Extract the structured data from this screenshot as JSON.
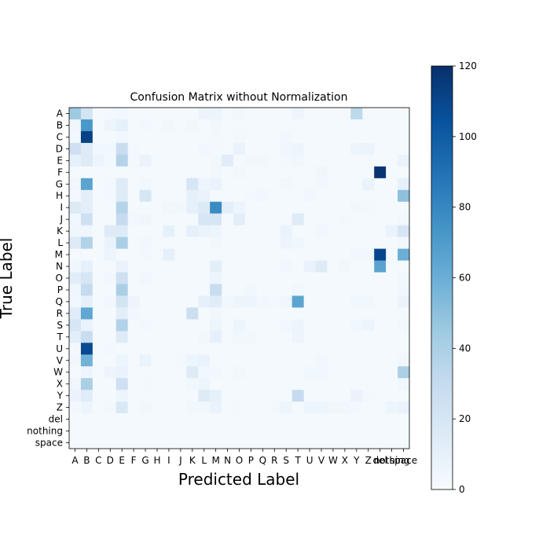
{
  "chart_data": {
    "type": "heatmap",
    "title": "Confusion Matrix without Normalization",
    "xlabel": "Predicted Label",
    "ylabel": "True Label",
    "x_tick_labels": [
      "A",
      "B",
      "C",
      "D",
      "E",
      "F",
      "G",
      "H",
      "I",
      "J",
      "K",
      "L",
      "M",
      "N",
      "O",
      "P",
      "Q",
      "R",
      "S",
      "T",
      "U",
      "V",
      "W",
      "X",
      "Y",
      "Z",
      "del",
      "nothing",
      "space"
    ],
    "y_tick_labels": [
      "A",
      "B",
      "C",
      "D",
      "E",
      "F",
      "G",
      "H",
      "I",
      "J",
      "K",
      "L",
      "M",
      "N",
      "O",
      "P",
      "Q",
      "R",
      "S",
      "T",
      "U",
      "V",
      "W",
      "X",
      "Y",
      "Z",
      "del",
      "nothing",
      "space"
    ],
    "colorbar": {
      "range": [
        0,
        120
      ],
      "ticks": [
        "0",
        "20",
        "40",
        "60",
        "80",
        "100",
        "120"
      ],
      "colormap": "Blues"
    },
    "color_stops": [
      "#f7fbff",
      "#deebf7",
      "#c6dbef",
      "#9ecae1",
      "#6baed6",
      "#4292c6",
      "#2171b5",
      "#08519c",
      "#08306b"
    ],
    "matrix": [
      [
        45,
        22,
        2,
        3,
        4,
        2,
        2,
        2,
        2,
        2,
        2,
        6,
        6,
        2,
        4,
        2,
        2,
        2,
        2,
        6,
        2,
        2,
        2,
        2,
        33,
        2,
        2,
        2,
        2
      ],
      [
        5,
        72,
        2,
        6,
        10,
        2,
        3,
        2,
        4,
        2,
        4,
        2,
        4,
        2,
        2,
        2,
        2,
        2,
        2,
        2,
        2,
        2,
        2,
        2,
        2,
        2,
        2,
        2,
        2
      ],
      [
        4,
        112,
        2,
        2,
        4,
        2,
        2,
        2,
        2,
        2,
        2,
        2,
        3,
        2,
        3,
        2,
        2,
        2,
        4,
        2,
        2,
        2,
        2,
        2,
        2,
        2,
        2,
        2,
        2
      ],
      [
        25,
        15,
        4,
        4,
        28,
        3,
        2,
        2,
        2,
        2,
        2,
        4,
        3,
        2,
        8,
        2,
        2,
        2,
        5,
        6,
        2,
        2,
        2,
        2,
        6,
        7,
        2,
        2,
        2
      ],
      [
        10,
        15,
        6,
        3,
        37,
        3,
        8,
        2,
        2,
        2,
        2,
        2,
        4,
        14,
        2,
        4,
        4,
        2,
        3,
        5,
        2,
        2,
        2,
        2,
        2,
        2,
        2,
        2,
        8
      ],
      [
        2,
        2,
        2,
        2,
        2,
        2,
        2,
        2,
        2,
        2,
        2,
        2,
        4,
        2,
        4,
        2,
        2,
        2,
        2,
        2,
        2,
        5,
        2,
        2,
        2,
        2,
        118,
        2,
        2
      ],
      [
        5,
        66,
        2,
        3,
        15,
        2,
        4,
        2,
        2,
        2,
        20,
        6,
        8,
        2,
        2,
        2,
        2,
        2,
        4,
        2,
        2,
        4,
        2,
        2,
        2,
        8,
        2,
        2,
        10
      ],
      [
        3,
        12,
        2,
        3,
        15,
        2,
        20,
        2,
        2,
        2,
        10,
        8,
        2,
        2,
        2,
        3,
        4,
        2,
        2,
        2,
        4,
        2,
        2,
        2,
        2,
        2,
        2,
        2,
        50
      ],
      [
        16,
        12,
        2,
        2,
        36,
        2,
        2,
        2,
        5,
        4,
        10,
        16,
        78,
        12,
        6,
        2,
        2,
        2,
        2,
        2,
        2,
        2,
        2,
        2,
        4,
        3,
        2,
        2,
        2
      ],
      [
        4,
        25,
        2,
        2,
        30,
        4,
        5,
        2,
        2,
        2,
        2,
        20,
        20,
        2,
        12,
        2,
        2,
        2,
        2,
        15,
        2,
        2,
        2,
        3,
        2,
        2,
        2,
        2,
        4
      ],
      [
        5,
        5,
        2,
        15,
        15,
        2,
        2,
        2,
        10,
        2,
        10,
        8,
        6,
        2,
        2,
        2,
        2,
        2,
        8,
        2,
        2,
        4,
        2,
        2,
        2,
        2,
        2,
        8,
        20
      ],
      [
        15,
        38,
        2,
        8,
        40,
        2,
        4,
        2,
        2,
        2,
        2,
        2,
        4,
        2,
        2,
        2,
        2,
        2,
        6,
        5,
        2,
        2,
        2,
        2,
        2,
        2,
        2,
        2,
        4
      ],
      [
        2,
        2,
        2,
        6,
        2,
        2,
        3,
        2,
        10,
        2,
        2,
        2,
        2,
        2,
        2,
        2,
        2,
        2,
        2,
        2,
        2,
        2,
        2,
        2,
        4,
        4,
        110,
        2,
        60
      ],
      [
        5,
        10,
        2,
        2,
        8,
        2,
        2,
        2,
        2,
        2,
        2,
        2,
        12,
        2,
        2,
        2,
        2,
        2,
        4,
        2,
        8,
        15,
        2,
        4,
        2,
        2,
        66,
        2,
        2
      ],
      [
        13,
        20,
        2,
        4,
        25,
        2,
        4,
        2,
        2,
        2,
        2,
        2,
        6,
        2,
        2,
        2,
        2,
        2,
        2,
        2,
        2,
        2,
        2,
        2,
        2,
        2,
        2,
        2,
        4
      ],
      [
        5,
        30,
        2,
        2,
        40,
        2,
        2,
        2,
        2,
        2,
        2,
        2,
        28,
        2,
        2,
        4,
        2,
        2,
        2,
        4,
        2,
        2,
        2,
        2,
        2,
        2,
        2,
        2,
        4
      ],
      [
        4,
        10,
        2,
        4,
        22,
        6,
        2,
        2,
        2,
        2,
        2,
        10,
        14,
        4,
        6,
        6,
        4,
        3,
        5,
        65,
        2,
        2,
        2,
        2,
        4,
        4,
        2,
        2,
        8
      ],
      [
        14,
        64,
        2,
        2,
        12,
        4,
        2,
        2,
        2,
        2,
        26,
        2,
        4,
        2,
        2,
        2,
        2,
        2,
        2,
        2,
        2,
        2,
        2,
        2,
        2,
        2,
        2,
        2,
        2
      ],
      [
        20,
        8,
        2,
        2,
        38,
        2,
        3,
        2,
        2,
        2,
        2,
        2,
        6,
        2,
        6,
        2,
        2,
        2,
        4,
        6,
        2,
        2,
        2,
        2,
        4,
        6,
        2,
        2,
        4
      ],
      [
        13,
        28,
        2,
        2,
        15,
        2,
        2,
        2,
        2,
        2,
        2,
        4,
        10,
        2,
        4,
        4,
        2,
        2,
        2,
        6,
        2,
        2,
        2,
        2,
        2,
        2,
        2,
        2,
        2
      ],
      [
        3,
        108,
        2,
        3,
        2,
        2,
        2,
        2,
        2,
        2,
        2,
        2,
        2,
        2,
        2,
        2,
        2,
        2,
        2,
        2,
        2,
        2,
        2,
        2,
        2,
        2,
        2,
        2,
        2
      ],
      [
        4,
        58,
        2,
        2,
        6,
        2,
        8,
        2,
        2,
        3,
        6,
        8,
        2,
        2,
        2,
        2,
        2,
        2,
        2,
        2,
        2,
        4,
        2,
        2,
        2,
        2,
        2,
        2,
        4
      ],
      [
        2,
        6,
        2,
        6,
        8,
        2,
        2,
        2,
        2,
        2,
        15,
        4,
        4,
        2,
        4,
        2,
        2,
        2,
        2,
        2,
        4,
        4,
        2,
        2,
        2,
        2,
        2,
        2,
        40
      ],
      [
        5,
        40,
        2,
        2,
        25,
        2,
        3,
        2,
        2,
        2,
        4,
        6,
        2,
        2,
        2,
        2,
        2,
        2,
        2,
        2,
        2,
        2,
        2,
        2,
        2,
        2,
        2,
        2,
        4
      ],
      [
        8,
        14,
        2,
        2,
        6,
        2,
        2,
        2,
        2,
        2,
        2,
        15,
        10,
        2,
        2,
        2,
        2,
        2,
        2,
        30,
        2,
        2,
        2,
        2,
        8,
        3,
        2,
        2,
        2
      ],
      [
        3,
        6,
        2,
        3,
        18,
        2,
        4,
        2,
        2,
        2,
        4,
        4,
        8,
        2,
        3,
        2,
        2,
        3,
        6,
        2,
        6,
        6,
        5,
        5,
        3,
        2,
        2,
        6,
        8
      ],
      [
        2,
        2,
        2,
        2,
        2,
        2,
        2,
        2,
        2,
        2,
        2,
        2,
        2,
        2,
        2,
        2,
        2,
        2,
        2,
        2,
        2,
        2,
        2,
        2,
        2,
        2,
        2,
        2,
        2
      ],
      [
        2,
        2,
        2,
        2,
        2,
        2,
        2,
        2,
        2,
        2,
        2,
        2,
        2,
        2,
        2,
        2,
        2,
        2,
        2,
        2,
        2,
        2,
        2,
        2,
        2,
        2,
        2,
        2,
        2
      ],
      [
        2,
        2,
        2,
        2,
        2,
        2,
        2,
        2,
        2,
        2,
        2,
        2,
        2,
        2,
        2,
        2,
        2,
        2,
        2,
        2,
        2,
        2,
        2,
        2,
        2,
        2,
        2,
        2,
        2
      ]
    ]
  }
}
